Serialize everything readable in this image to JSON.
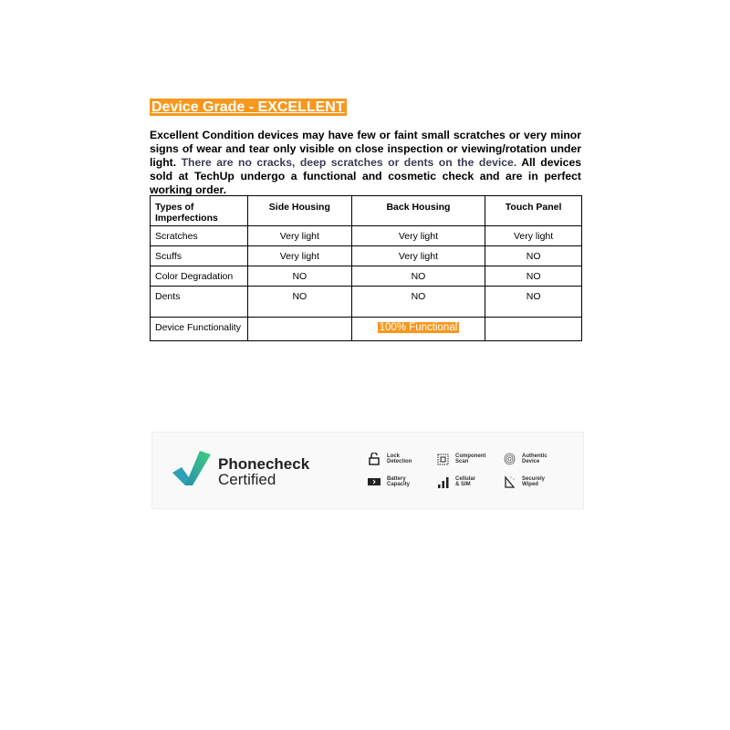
{
  "title": "Device Grade - EXCELLENT",
  "description": {
    "part1": "Excellent Condition devices may have few or faint small scratches or very minor signs of wear and tear only visible on close inspection or viewing/rotation under light.",
    "part2": "There are no cracks, deep scratches or dents on the device.",
    "part3": "All devices sold at TechUp undergo a functional and cosmetic check and are in perfect working order."
  },
  "table": {
    "headers": [
      "Types of Imperfections",
      "Side Housing",
      "Back Housing",
      "Touch Panel"
    ],
    "rows": [
      [
        "Scratches",
        "Very light",
        "Very light",
        "Very light"
      ],
      [
        "Scuffs",
        "Very light",
        "Very light",
        "NO"
      ],
      [
        "Color Degradation",
        "NO",
        "NO",
        "NO"
      ],
      [
        "Dents",
        "NO",
        "NO",
        "NO"
      ]
    ],
    "functionality": {
      "label": "Device Functionality",
      "value": "100% Functional"
    }
  },
  "banner": {
    "brand_line1": "Phonecheck",
    "brand_line2": "Certified",
    "features": [
      {
        "icon": "lock-icon",
        "line1": "Lock",
        "line2": "Detection"
      },
      {
        "icon": "chip-icon",
        "line1": "Component",
        "line2": "Scan"
      },
      {
        "icon": "fingerprint-icon",
        "line1": "Authentic",
        "line2": "Device"
      },
      {
        "icon": "battery-icon",
        "line1": "Battery",
        "line2": "Capacity"
      },
      {
        "icon": "signal-icon",
        "line1": "Cellular",
        "line2": "& SIM"
      },
      {
        "icon": "wipe-icon",
        "line1": "Securely",
        "line2": "Wiped"
      }
    ]
  },
  "colors": {
    "accent": "#f6981e"
  }
}
